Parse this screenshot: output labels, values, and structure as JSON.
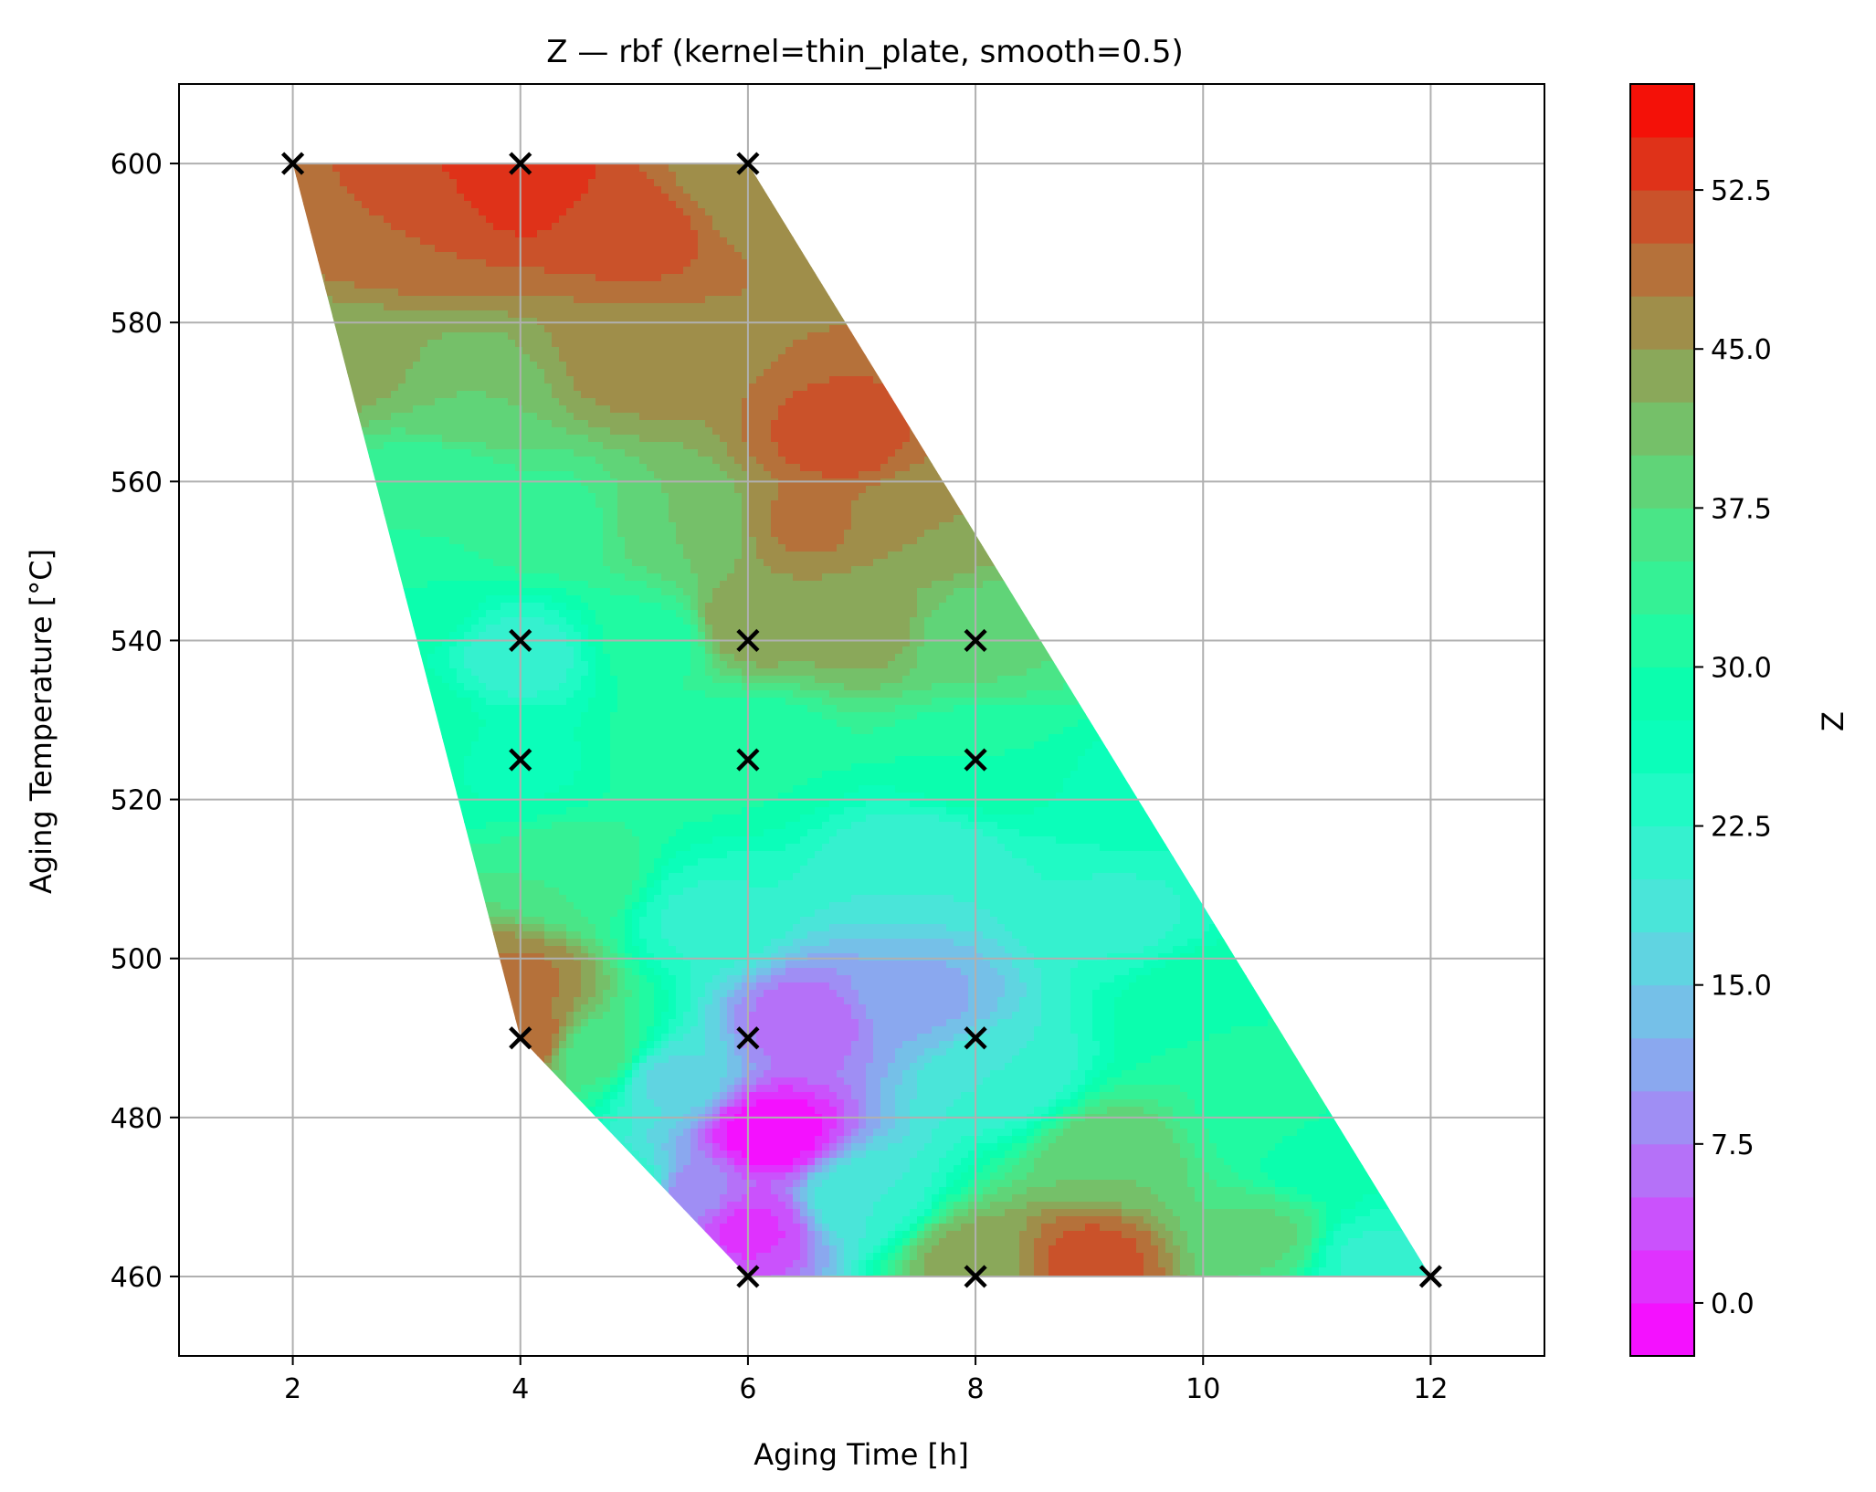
{
  "chart_data": {
    "type": "contourf",
    "title": "Z — rbf (kernel=thin_plate, smooth=0.5)",
    "xlabel": "Aging Time [h]",
    "ylabel": "Aging Temperature [°C]",
    "xlim": [
      1,
      13
    ],
    "ylim": [
      450,
      610
    ],
    "x_ticks": [
      2,
      4,
      6,
      8,
      10,
      12
    ],
    "y_ticks": [
      460,
      480,
      500,
      520,
      540,
      560,
      580,
      600
    ],
    "grid": true,
    "colormap": "rainbow",
    "colorbar": {
      "label": "Z",
      "range": [
        -2.5,
        57.5
      ],
      "level_step": 2.5,
      "ticks": [
        0.0,
        7.5,
        15.0,
        22.5,
        30.0,
        37.5,
        45.0,
        52.5
      ],
      "tick_labels": [
        "0.0",
        "7.5",
        "15.0",
        "22.5",
        "30.0",
        "37.5",
        "45.0",
        "52.5"
      ]
    },
    "region_boundary": [
      [
        2,
        600
      ],
      [
        6,
        600
      ],
      [
        12,
        460
      ],
      [
        6,
        460
      ],
      [
        4,
        490
      ],
      [
        2,
        600
      ]
    ],
    "samples": [
      {
        "x": 2,
        "y": 600
      },
      {
        "x": 4,
        "y": 600
      },
      {
        "x": 6,
        "y": 600
      },
      {
        "x": 4,
        "y": 540
      },
      {
        "x": 6,
        "y": 540
      },
      {
        "x": 8,
        "y": 540
      },
      {
        "x": 4,
        "y": 525
      },
      {
        "x": 6,
        "y": 525
      },
      {
        "x": 8,
        "y": 525
      },
      {
        "x": 4,
        "y": 490
      },
      {
        "x": 6,
        "y": 490
      },
      {
        "x": 8,
        "y": 490
      },
      {
        "x": 6,
        "y": 460
      },
      {
        "x": 8,
        "y": 460
      },
      {
        "x": 12,
        "y": 460
      }
    ],
    "field_features": [
      {
        "x": 4.0,
        "y": 598,
        "z": 54
      },
      {
        "x": 3.0,
        "y": 592,
        "z": 50
      },
      {
        "x": 5.0,
        "y": 592,
        "z": 51
      },
      {
        "x": 6.0,
        "y": 598,
        "z": 45
      },
      {
        "x": 2.5,
        "y": 575,
        "z": 44
      },
      {
        "x": 3.5,
        "y": 570,
        "z": 40
      },
      {
        "x": 5.0,
        "y": 575,
        "z": 46
      },
      {
        "x": 6.8,
        "y": 565,
        "z": 51
      },
      {
        "x": 6.5,
        "y": 555,
        "z": 48
      },
      {
        "x": 7.5,
        "y": 555,
        "z": 45
      },
      {
        "x": 3.2,
        "y": 560,
        "z": 33
      },
      {
        "x": 4.2,
        "y": 555,
        "z": 34
      },
      {
        "x": 5.5,
        "y": 555,
        "z": 40
      },
      {
        "x": 4.0,
        "y": 538,
        "z": 21
      },
      {
        "x": 5.2,
        "y": 540,
        "z": 31
      },
      {
        "x": 6.0,
        "y": 542,
        "z": 45
      },
      {
        "x": 7.0,
        "y": 542,
        "z": 44
      },
      {
        "x": 8.0,
        "y": 540,
        "z": 38
      },
      {
        "x": 4.0,
        "y": 525,
        "z": 27
      },
      {
        "x": 5.5,
        "y": 527,
        "z": 32
      },
      {
        "x": 6.0,
        "y": 527,
        "z": 30
      },
      {
        "x": 8.0,
        "y": 525,
        "z": 30
      },
      {
        "x": 9.5,
        "y": 520,
        "z": 26
      },
      {
        "x": 4.5,
        "y": 510,
        "z": 35
      },
      {
        "x": 5.6,
        "y": 505,
        "z": 22
      },
      {
        "x": 7.5,
        "y": 512,
        "z": 20
      },
      {
        "x": 9.3,
        "y": 505,
        "z": 22
      },
      {
        "x": 4.0,
        "y": 497,
        "z": 48
      },
      {
        "x": 4.0,
        "y": 490,
        "z": 50
      },
      {
        "x": 4.7,
        "y": 488,
        "z": 36
      },
      {
        "x": 5.3,
        "y": 485,
        "z": 17
      },
      {
        "x": 6.5,
        "y": 492,
        "z": 6
      },
      {
        "x": 7.5,
        "y": 495,
        "z": 12
      },
      {
        "x": 6.2,
        "y": 478,
        "z": -2
      },
      {
        "x": 6.0,
        "y": 466,
        "z": 2
      },
      {
        "x": 7.0,
        "y": 470,
        "z": 20
      },
      {
        "x": 8.2,
        "y": 485,
        "z": 20
      },
      {
        "x": 8.0,
        "y": 462,
        "z": 44
      },
      {
        "x": 9.0,
        "y": 462,
        "z": 51
      },
      {
        "x": 9.2,
        "y": 475,
        "z": 40
      },
      {
        "x": 10.0,
        "y": 495,
        "z": 30
      },
      {
        "x": 10.5,
        "y": 480,
        "z": 32
      },
      {
        "x": 10.5,
        "y": 465,
        "z": 38
      },
      {
        "x": 11.5,
        "y": 462,
        "z": 22
      },
      {
        "x": 11.0,
        "y": 475,
        "z": 28
      },
      {
        "x": 5.0,
        "y": 470,
        "z": 25
      },
      {
        "x": 5.5,
        "y": 470,
        "z": 8
      },
      {
        "x": 3.0,
        "y": 545,
        "z": 30
      },
      {
        "x": 3.0,
        "y": 530,
        "z": 30
      }
    ]
  }
}
